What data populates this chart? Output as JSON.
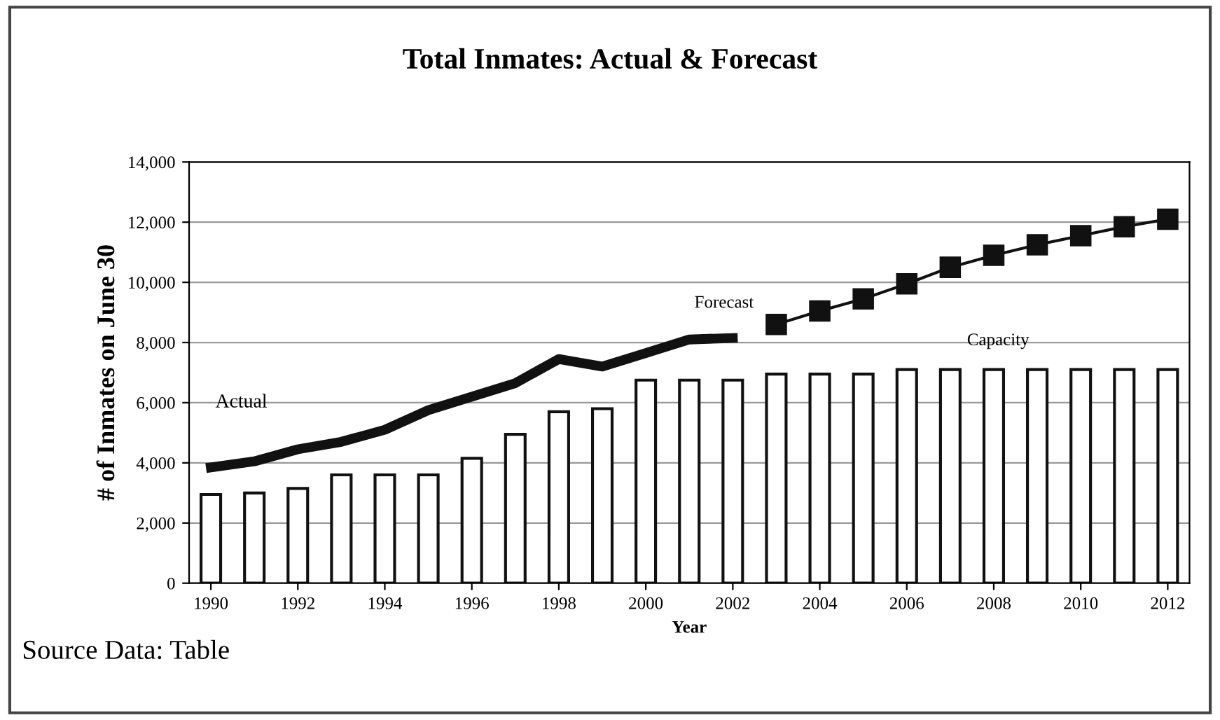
{
  "chart_data": {
    "type": "bar",
    "title": "Total Inmates: Actual & Forecast",
    "xlabel": "Year",
    "ylabel": "# of Inmates on June 30",
    "x": [
      1990,
      1991,
      1992,
      1993,
      1994,
      1995,
      1996,
      1997,
      1998,
      1999,
      2000,
      2001,
      2002,
      2003,
      2004,
      2005,
      2006,
      2007,
      2008,
      2009,
      2010,
      2011,
      2012
    ],
    "series": [
      {
        "name": "Capacity",
        "color": "#ffffff",
        "values": [
          2950,
          3000,
          3150,
          3600,
          3600,
          3600,
          4150,
          4950,
          5700,
          5800,
          6750,
          6750,
          6750,
          6950,
          6950,
          6950,
          7100,
          7100,
          7100,
          7100,
          7100,
          7100,
          7100
        ]
      },
      {
        "name": "Actual",
        "type": "line",
        "color": "#111111",
        "marker": "none",
        "x": [
          1990,
          1991,
          1992,
          1993,
          1994,
          1995,
          1996,
          1997,
          1998,
          1999,
          2000,
          2001,
          2002
        ],
        "values": [
          3850,
          4050,
          4450,
          4700,
          5100,
          5750,
          6200,
          6650,
          7450,
          7200,
          7650,
          8100,
          8150
        ]
      },
      {
        "name": "Forecast",
        "type": "line",
        "color": "#111111",
        "marker": "square",
        "x": [
          2003,
          2004,
          2005,
          2006,
          2007,
          2008,
          2009,
          2010,
          2011,
          2012
        ],
        "values": [
          8600,
          9050,
          9450,
          9950,
          10500,
          10900,
          11250,
          11550,
          11850,
          12100
        ]
      }
    ],
    "xlim": [
      1989.5,
      2012.5
    ],
    "xticks": [
      1990,
      1992,
      1994,
      1996,
      1998,
      2000,
      2002,
      2004,
      2006,
      2008,
      2010,
      2012
    ],
    "ylim": [
      0,
      14000
    ],
    "yticks": [
      {
        "value": 0,
        "label": "0"
      },
      {
        "value": 2000,
        "label": "2,000"
      },
      {
        "value": 4000,
        "label": "4,000"
      },
      {
        "value": 6000,
        "label": "6,000"
      },
      {
        "value": 8000,
        "label": "8,000"
      },
      {
        "value": 10000,
        "label": "10,000"
      },
      {
        "value": 12000,
        "label": "12,000"
      },
      {
        "value": 14000,
        "label": "14,000"
      }
    ],
    "grid": "y",
    "legend": false,
    "annotations": [
      "Source Data: Table"
    ]
  }
}
